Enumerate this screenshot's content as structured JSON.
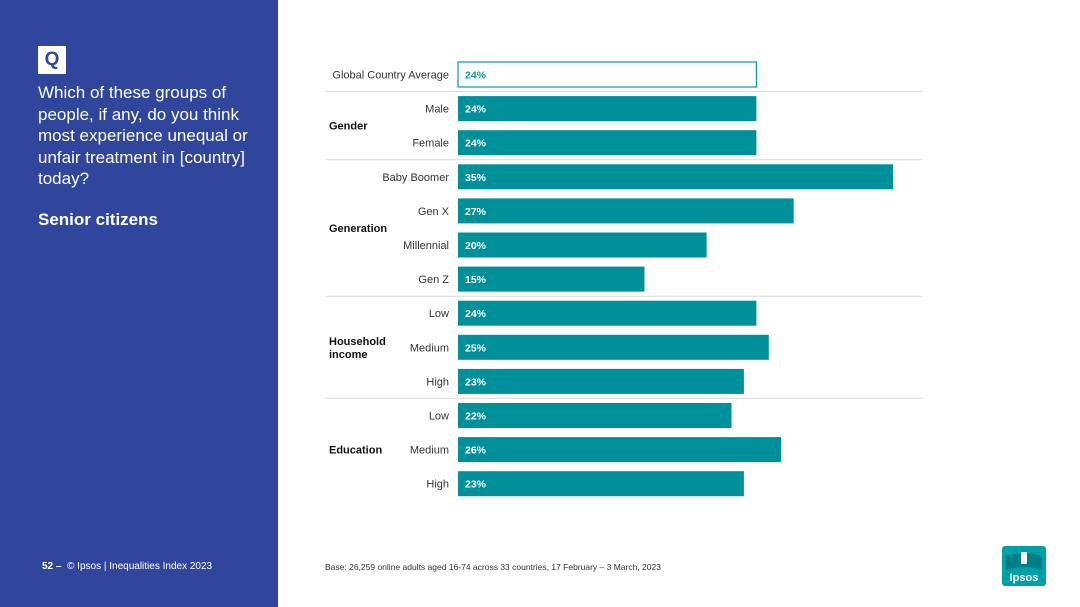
{
  "panel": {
    "q_label": "Q",
    "question": "Which of these groups of people, if any, do you think most experience unequal or unfair treatment in [country] today?",
    "topic": "Senior citizens",
    "footer_page": "52",
    "footer_sep": "–",
    "footer_text": "© Ipsos | Inequalities Index 2023",
    "bg_color": "#2F469C"
  },
  "base_note": "Base: 26,259 online adults aged 16-74 across 33 countries, 17 February – 3 March, 2023",
  "logo": {
    "text": "Ipsos",
    "color": "#00A0A8"
  },
  "chart_data": {
    "type": "bar",
    "orientation": "horizontal",
    "title": "Senior citizens",
    "xlabel": "",
    "ylabel": "",
    "xlim": [
      0,
      37
    ],
    "grid": false,
    "colors": {
      "bar": "#00909A",
      "highlight_border": "#00A0A8",
      "highlight_text": "#00A0A8",
      "divider": "#D9D9D9"
    },
    "categories": [
      "Global Country Average",
      "Male",
      "Female",
      "Baby Boomer",
      "Gen X",
      "Millennial",
      "Gen Z",
      "Low",
      "Medium",
      "High",
      "Low",
      "Medium",
      "High"
    ],
    "groups": [
      "",
      "Gender",
      "Gender",
      "Generation",
      "Generation",
      "Generation",
      "Generation",
      "Household income",
      "Household income",
      "Household income",
      "Education",
      "Education",
      "Education"
    ],
    "values": [
      24,
      24,
      24,
      35,
      27,
      20,
      15,
      24,
      25,
      23,
      22,
      26,
      23
    ],
    "value_labels": [
      "24%",
      "24%",
      "24%",
      "35%",
      "27%",
      "20%",
      "15%",
      "24%",
      "25%",
      "23%",
      "22%",
      "26%",
      "23%"
    ],
    "highlight_index": 0,
    "group_titles": [
      {
        "name": "Gender",
        "lines": [
          "Gender"
        ]
      },
      {
        "name": "Generation",
        "lines": [
          "Generation"
        ]
      },
      {
        "name": "Household income",
        "lines": [
          "Household",
          "income"
        ]
      },
      {
        "name": "Education",
        "lines": [
          "Education"
        ]
      }
    ]
  }
}
